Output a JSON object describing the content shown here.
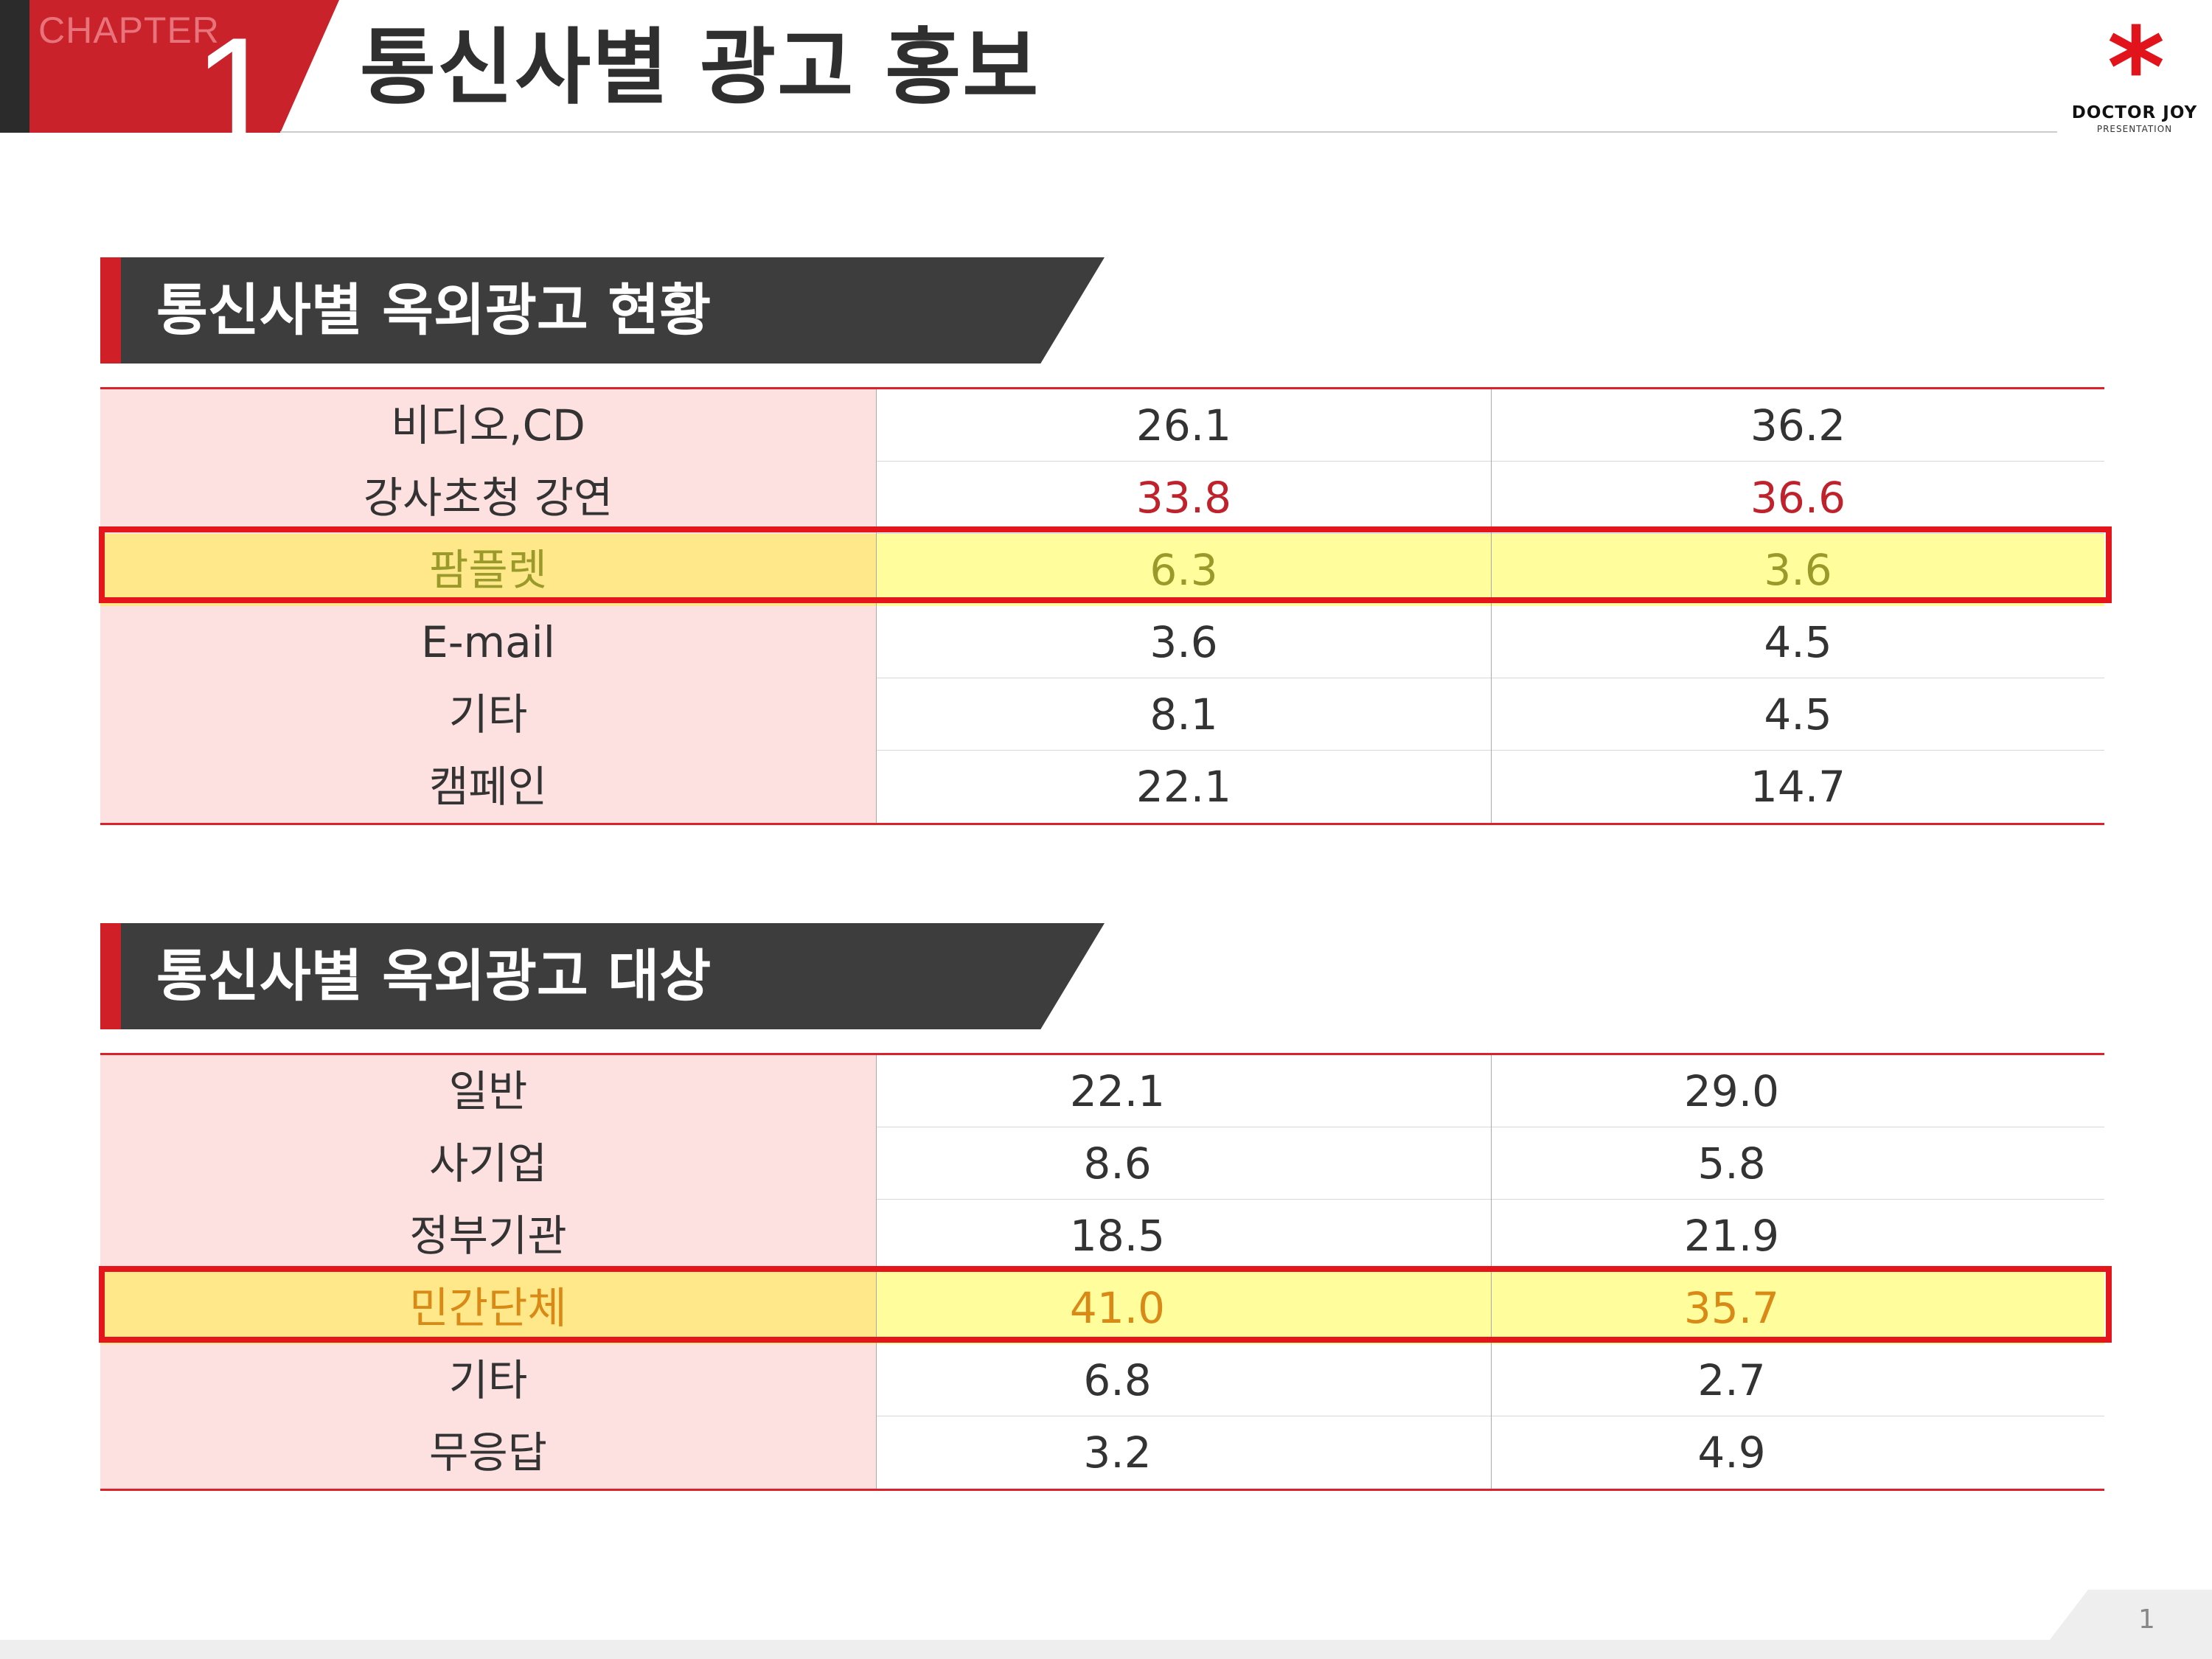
{
  "header": {
    "chapter_label": "CHAPTER",
    "chapter_number": "1",
    "title": "통신사별 광고 홍보"
  },
  "logo": {
    "icon": "asterisk-icon",
    "mark": "*",
    "name": "DOCTOR JOY",
    "sub": "PRESENTATION",
    "color": "#e1141c"
  },
  "section1": {
    "title": "통신사별 옥외광고 현황",
    "rows": [
      {
        "label": "비디오,CD",
        "v1": "26.1",
        "v2": "36.2"
      },
      {
        "label": "강사초청 강연",
        "v1": "33.8",
        "v2": "36.6"
      },
      {
        "label": "팜플렛",
        "v1": "6.3",
        "v2": "3.6"
      },
      {
        "label": "E-mail",
        "v1": "3.6",
        "v2": "4.5"
      },
      {
        "label": "기타",
        "v1": "8.1",
        "v2": "4.5"
      },
      {
        "label": "캠페인",
        "v1": "22.1",
        "v2": "14.7"
      }
    ]
  },
  "section2": {
    "title": "통신사별 옥외광고 대상",
    "rows": [
      {
        "label": "일반",
        "v1": "22.1",
        "v2": "29.0"
      },
      {
        "label": "사기업",
        "v1": "8.6",
        "v2": "5.8"
      },
      {
        "label": "정부기관",
        "v1": "18.5",
        "v2": "21.9"
      },
      {
        "label": "민간단체",
        "v1": "41.0",
        "v2": "35.7"
      },
      {
        "label": "기타",
        "v1": "6.8",
        "v2": "2.7"
      },
      {
        "label": "무응답",
        "v1": "3.2",
        "v2": "4.9"
      }
    ]
  },
  "colors": {
    "accent_red": "#d01f27",
    "banner_dark": "#3d3d3d",
    "label_column": "#fde1e1",
    "highlight_fill": "#fffd9c",
    "highlight_border": "#e5161b"
  },
  "footer": {
    "page_number": "1"
  }
}
